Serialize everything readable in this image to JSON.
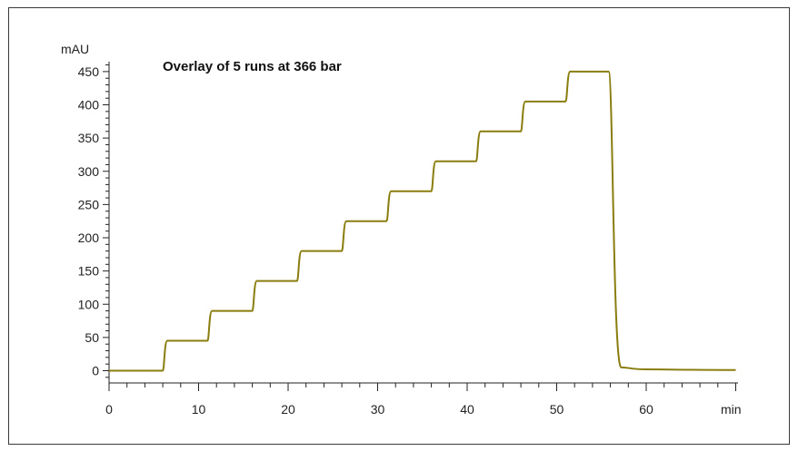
{
  "chart_data": {
    "type": "line",
    "title": "Overlay of 5 runs at 366 bar",
    "ylabel": "mAU",
    "xlabel": "min",
    "xlim": [
      0,
      70
    ],
    "ylim": [
      -20,
      465
    ],
    "x_ticks": [
      0,
      10,
      20,
      30,
      40,
      50,
      60
    ],
    "x_tick_labels": [
      "0",
      "10",
      "20",
      "30",
      "40",
      "50",
      "60"
    ],
    "y_ticks": [
      0,
      50,
      100,
      150,
      200,
      250,
      300,
      350,
      400,
      450
    ],
    "y_tick_labels": [
      "0",
      "50",
      "100",
      "150",
      "200",
      "250",
      "300",
      "350",
      "400",
      "450"
    ],
    "series_color": "#8a7d0f",
    "series": [
      {
        "values_description": "step gradient",
        "x": [
          0,
          6.0,
          6.5,
          11.0,
          11.5,
          16.0,
          16.5,
          21.0,
          21.5,
          26.0,
          26.5,
          31.0,
          31.5,
          36.0,
          36.5,
          41.0,
          41.5,
          46.0,
          46.5,
          51.0,
          51.5,
          55.8,
          57.2,
          60.0,
          70
        ],
        "y": [
          0,
          0,
          45,
          45,
          90,
          90,
          135,
          135,
          180,
          180,
          225,
          225,
          270,
          270,
          315,
          315,
          360,
          360,
          405,
          405,
          450,
          450,
          5,
          2,
          1
        ]
      }
    ]
  }
}
